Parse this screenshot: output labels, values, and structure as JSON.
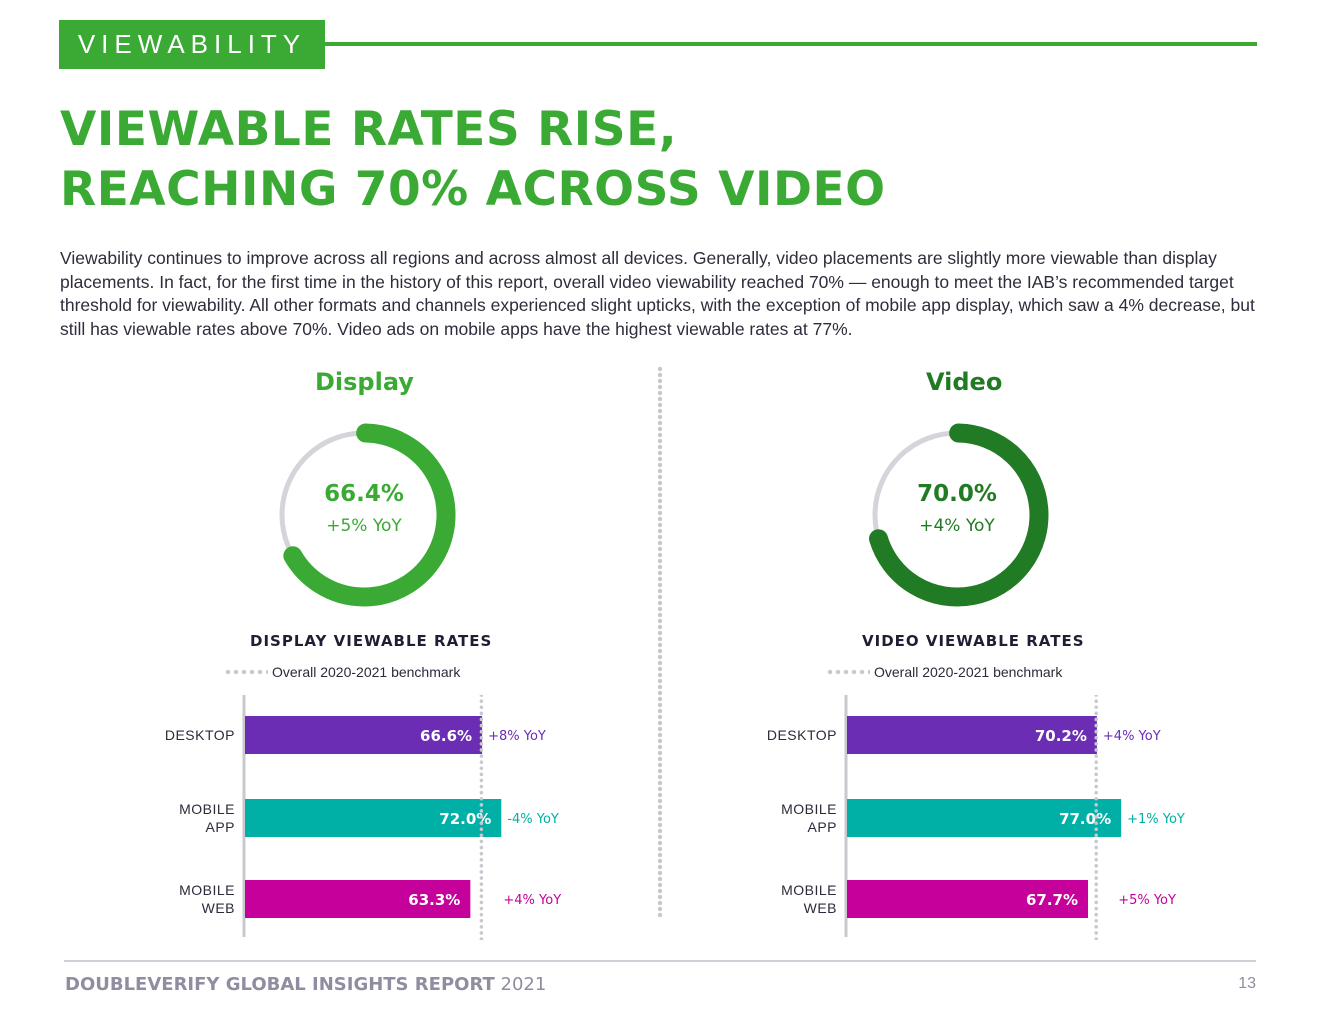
{
  "header": {
    "section_tag": "VIEWABILITY",
    "headline_line1": "VIEWABLE RATES RISE,",
    "headline_line2": "REACHING 70% ACROSS VIDEO"
  },
  "intro_text": "Viewability continues to improve across all regions and across almost all devices. Generally, video placements are slightly more viewable than display placements. In fact, for the first time in the history of this report, overall video viewability reached 70% — enough to meet the IAB’s recommended target threshold for viewability. All other formats and channels experienced slight upticks, with the exception of mobile app display, which saw a 4% decrease, but still has viewable rates above 70%. Video ads on mobile apps have the highest viewable rates at 77%.",
  "colors": {
    "brand_green": "#3aaa35",
    "video_green": "#217a24",
    "donut_track": "#d4d4da",
    "desktop": "#6a2db4",
    "mobile_app": "#00b0a6",
    "mobile_web": "#c6009a"
  },
  "footer": {
    "report_name": "DOUBLEVERIFY GLOBAL INSIGHTS REPORT",
    "year": "2021",
    "page_number": "13"
  },
  "chart_data": [
    {
      "type": "pie",
      "title": "Display",
      "value_label": "66.4%",
      "value": 66.4,
      "yoy": "+5% YoY",
      "color": "#3aaa35"
    },
    {
      "type": "pie",
      "title": "Video",
      "value_label": "70.0%",
      "value": 70.0,
      "yoy": "+4% YoY",
      "color": "#217a24"
    },
    {
      "type": "bar",
      "orientation": "horizontal",
      "title": "DISPLAY VIEWABLE RATES",
      "legend": "Overall 2020-2021 benchmark",
      "benchmark": 66.4,
      "xlim": [
        0,
        100
      ],
      "categories": [
        [
          "DESKTOP"
        ],
        [
          "MOBILE",
          "APP"
        ],
        [
          "MOBILE",
          "WEB"
        ]
      ],
      "values": [
        66.6,
        72.0,
        63.3
      ],
      "value_labels": [
        "66.6%",
        "72.0%",
        "63.3%"
      ],
      "yoy_labels": [
        "+8% YoY",
        "-4% YoY",
        "+4% YoY"
      ],
      "colors": [
        "#6a2db4",
        "#00b0a6",
        "#c6009a"
      ]
    },
    {
      "type": "bar",
      "orientation": "horizontal",
      "title": "VIDEO VIEWABLE RATES",
      "legend": "Overall 2020-2021 benchmark",
      "benchmark": 70.0,
      "xlim": [
        0,
        100
      ],
      "categories": [
        [
          "DESKTOP"
        ],
        [
          "MOBILE",
          "APP"
        ],
        [
          "MOBILE",
          "WEB"
        ]
      ],
      "values": [
        70.2,
        77.0,
        67.7
      ],
      "value_labels": [
        "70.2%",
        "77.0%",
        "67.7%"
      ],
      "yoy_labels": [
        "+4% YoY",
        "+1% YoY",
        "+5% YoY"
      ],
      "colors": [
        "#6a2db4",
        "#00b0a6",
        "#c6009a"
      ]
    }
  ]
}
